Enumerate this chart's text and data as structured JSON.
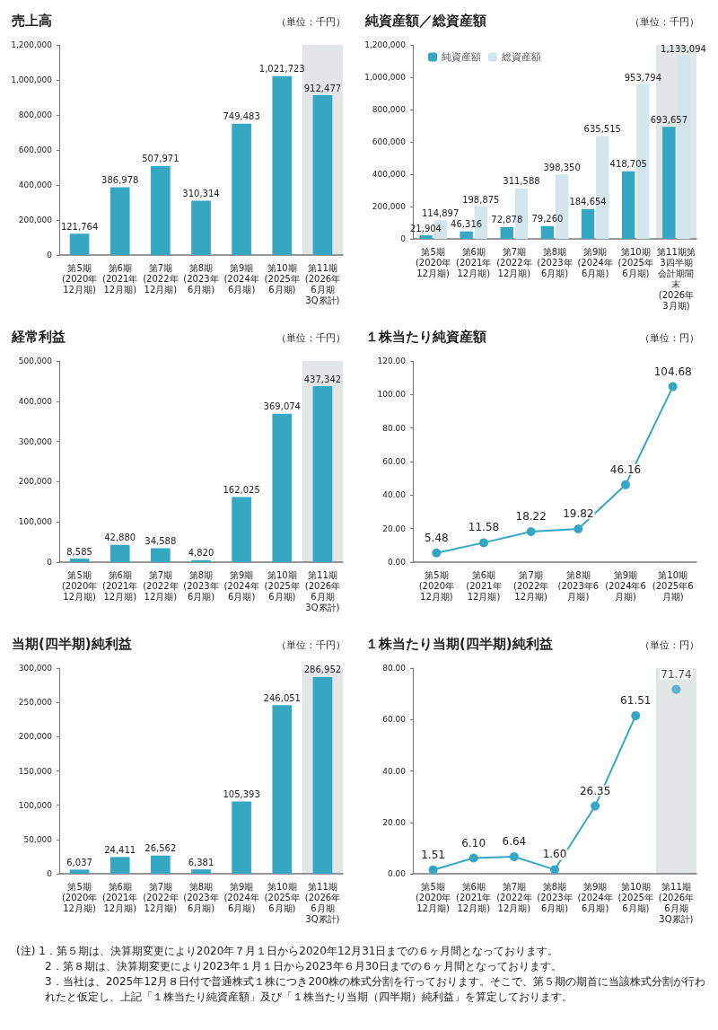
{
  "chart_data": [
    {
      "type": "bar",
      "title": "売上高",
      "subtitle": "（単位：千円）",
      "categories": [
        "第5期\n(2020年12月期)",
        "第6期\n(2021年12月期)",
        "第7期\n(2022年12月期)",
        "第8期\n(2023年6月期)",
        "第9期\n(2024年6月期)",
        "第10期\n(2025年6月期)",
        "第11期\n(2026年6月期\n3Q累計)"
      ],
      "series": [
        {
          "color": "#35a7c2",
          "values": [
            121764,
            386978,
            507971,
            310314,
            749483,
            1021723,
            912477
          ],
          "value_labels": [
            "121,764",
            "386,978",
            "507,971",
            "310,314",
            "749,483",
            "1,021,723",
            "912,477"
          ]
        }
      ],
      "ylim": [
        0,
        1200000
      ],
      "yticks": [
        {
          "value": 0,
          "label": "0"
        },
        {
          "value": 200000,
          "label": "200,000"
        },
        {
          "value": 400000,
          "label": "400,000"
        },
        {
          "value": 600000,
          "label": "600,000"
        },
        {
          "value": 800000,
          "label": "800,000"
        },
        {
          "value": 1000000,
          "label": "1,000,000"
        },
        {
          "value": 1200000,
          "label": "1,200,000"
        }
      ],
      "bands": [
        {
          "axis": "x",
          "from": "第11期\n(2026年6月期\n3Q累計)",
          "to": "第11期\n(2026年6月期\n3Q累計)",
          "color": "#e3e6e6"
        }
      ],
      "grid": false
    },
    {
      "type": "bar",
      "title": "純資産額／総資産額",
      "subtitle": "（単位：千円）",
      "categories": [
        "第5期\n(2020年12月期)",
        "第6期\n(2021年12月期)",
        "第7期\n(2022年12月期)",
        "第8期\n(2023年6月期)",
        "第9期\n(2024年6月期)",
        "第10期\n(2025年6月期)",
        "第11期第3四半期会計期間末\n(2026年3月期)"
      ],
      "series": [
        {
          "name": "純資産額",
          "color": "#35a7c2",
          "values": [
            21904,
            46316,
            72878,
            79260,
            184654,
            418705,
            693657
          ],
          "value_labels": [
            "21,904",
            "46,316",
            "72,878",
            "79,260",
            "184,654",
            "418,705",
            "693,657"
          ]
        },
        {
          "name": "総資産額",
          "color": "#d2e6ec",
          "values": [
            114897,
            198875,
            311588,
            398350,
            635515,
            953794,
            1133094
          ],
          "value_labels": [
            "114,897",
            "198,875",
            "311,588",
            "398,350",
            "635,515",
            "953,794",
            "1,133,094"
          ]
        }
      ],
      "ylim": [
        0,
        1200000
      ],
      "yticks": [
        {
          "value": 0,
          "label": "0"
        },
        {
          "value": 200000,
          "label": "200,000"
        },
        {
          "value": 400000,
          "label": "400,000"
        },
        {
          "value": 600000,
          "label": "600,000"
        },
        {
          "value": 800000,
          "label": "800,000"
        },
        {
          "value": 1000000,
          "label": "1,000,000"
        },
        {
          "value": 1200000,
          "label": "1,200,000"
        }
      ],
      "bands": [
        {
          "axis": "x",
          "from": "第11期第3四半期会計期間末\n(2026年3月期)",
          "to": "第11期第3四半期会計期間末\n(2026年3月期)",
          "color": "#e3e6e6"
        }
      ],
      "legend": "top left"
    },
    {
      "type": "bar",
      "title": "経常利益",
      "subtitle": "（単位：千円）",
      "categories": [
        "第5期\n(2020年12月期)",
        "第6期\n(2021年12月期)",
        "第7期\n(2022年12月期)",
        "第8期\n(2023年6月期)",
        "第9期\n(2024年6月期)",
        "第10期\n(2025年6月期)",
        "第11期\n(2026年6月期\n3Q累計)"
      ],
      "series": [
        {
          "color": "#35a7c2",
          "values": [
            8585,
            42880,
            34588,
            4820,
            162025,
            369074,
            437342
          ],
          "value_labels": [
            "8,585",
            "42,880",
            "34,588",
            "4,820",
            "162,025",
            "369,074",
            "437,342"
          ]
        }
      ],
      "ylim": [
        0,
        500000
      ],
      "yticks": [
        {
          "value": 0,
          "label": "0"
        },
        {
          "value": 100000,
          "label": "100,000"
        },
        {
          "value": 200000,
          "label": "200,000"
        },
        {
          "value": 300000,
          "label": "300,000"
        },
        {
          "value": 400000,
          "label": "400,000"
        },
        {
          "value": 500000,
          "label": "500,000"
        }
      ],
      "bands": [
        {
          "axis": "x",
          "from": "第11期\n(2026年6月期\n3Q累計)",
          "to": "第11期\n(2026年6月期\n3Q累計)",
          "color": "#e3e6e6"
        }
      ],
      "grid": false
    },
    {
      "type": "line",
      "title": "１株当たり純資産額",
      "subtitle": "（単位：円）",
      "categories": [
        "第5期\n(2020年12月期)",
        "第6期\n(2021年12月期)",
        "第7期\n(2022年12月期)",
        "第8期\n(2023年6月期)",
        "第9期\n(2024年6月期)",
        "第10期\n(2025年6月期)"
      ],
      "series": [
        {
          "color": "#35a7c2",
          "values": [
            5.48,
            11.58,
            18.22,
            19.82,
            46.16,
            104.68
          ],
          "value_labels": [
            "5.48",
            "11.58",
            "18.22",
            "19.82",
            "46.16",
            "104.68"
          ]
        }
      ],
      "ylim": [
        0,
        120
      ],
      "yticks": [
        {
          "value": 0,
          "label": "0.00"
        },
        {
          "value": 20,
          "label": "20.00"
        },
        {
          "value": 40,
          "label": "40.00"
        },
        {
          "value": 60,
          "label": "60.00"
        },
        {
          "value": 80,
          "label": "80.00"
        },
        {
          "value": 100,
          "label": "100.00"
        },
        {
          "value": 120,
          "label": "120.00"
        }
      ],
      "marker": "circle"
    },
    {
      "type": "bar",
      "title": "当期(四半期)純利益",
      "subtitle": "（単位：千円）",
      "categories": [
        "第5期\n(2020年12月期)",
        "第6期\n(2021年12月期)",
        "第7期\n(2022年12月期)",
        "第8期\n(2023年6月期)",
        "第9期\n(2024年6月期)",
        "第10期\n(2025年6月期)",
        "第11期\n(2026年6月期\n3Q累計)"
      ],
      "series": [
        {
          "color": "#35a7c2",
          "values": [
            6037,
            24411,
            26562,
            6381,
            105393,
            246051,
            286952
          ],
          "value_labels": [
            "6,037",
            "24,411",
            "26,562",
            "6,381",
            "105,393",
            "246,051",
            "286,952"
          ]
        }
      ],
      "ylim": [
        0,
        300000
      ],
      "yticks": [
        {
          "value": 0,
          "label": "0"
        },
        {
          "value": 50000,
          "label": "50,000"
        },
        {
          "value": 100000,
          "label": "100,000"
        },
        {
          "value": 150000,
          "label": "150,000"
        },
        {
          "value": 200000,
          "label": "200,000"
        },
        {
          "value": 250000,
          "label": "250,000"
        },
        {
          "value": 300000,
          "label": "300,000"
        }
      ],
      "bands": [
        {
          "axis": "x",
          "from": "第11期\n(2026年6月期\n3Q累計)",
          "to": "第11期\n(2026年6月期\n3Q累計)",
          "color": "#e3e6e6"
        }
      ],
      "grid": false
    },
    {
      "type": "line",
      "title": "１株当たり当期(四半期)純利益",
      "subtitle": "（単位：円）",
      "categories": [
        "第5期\n(2020年12月期)",
        "第6期\n(2021年12月期)",
        "第7期\n(2022年12月期)",
        "第8期\n(2023年6月期)",
        "第9期\n(2024年6月期)",
        "第10期\n(2025年6月期)",
        "第11期\n(2026年6月期\n3Q累計)"
      ],
      "series": [
        {
          "color": "#35a7c2",
          "values": [
            1.51,
            6.1,
            6.64,
            1.6,
            26.35,
            61.51,
            null
          ],
          "value_labels": [
            "1.51",
            "6.10",
            "6.64",
            "1.60",
            "26.35",
            "61.51",
            null
          ]
        },
        {
          "type": "scatter",
          "color": "#35a7c2",
          "x": [
            "第11期\n(2026年6月期\n3Q累計)"
          ],
          "values": [
            71.74
          ],
          "value_labels": [
            "71.74"
          ]
        }
      ],
      "ylim": [
        0,
        80
      ],
      "yticks": [
        {
          "value": 0,
          "label": "0.00"
        },
        {
          "value": 20,
          "label": "20.00"
        },
        {
          "value": 40,
          "label": "40.00"
        },
        {
          "value": 60,
          "label": "60.00"
        },
        {
          "value": 80,
          "label": "80.00"
        }
      ],
      "bands": [
        {
          "axis": "x",
          "from": "第11期\n(2026年6月期\n3Q累計)",
          "to": "第11期\n(2026年6月期\n3Q累計)",
          "color": "#e3e6e6"
        }
      ],
      "marker": "circle"
    },
    {
      "type": "other",
      "annotations": [
        "(注) 1．第５期は、決算期変更により2020年７月１日から2020年12月31日までの６ヶ月間となっております。",
        "2．第８期は、決算期変更により2023年１月１日から2023年６月30日までの６ヶ月間となっております。",
        "3．当社は、2025年12月８日付で普通株式１株につき200株の株式分割を行っております。そこで、第５期の期首に当該株式分割が行われたと仮定し、上記「１株当たり純資産額」及び「１株当たり当期（四半期）純利益」を算定しております。"
      ]
    }
  ]
}
